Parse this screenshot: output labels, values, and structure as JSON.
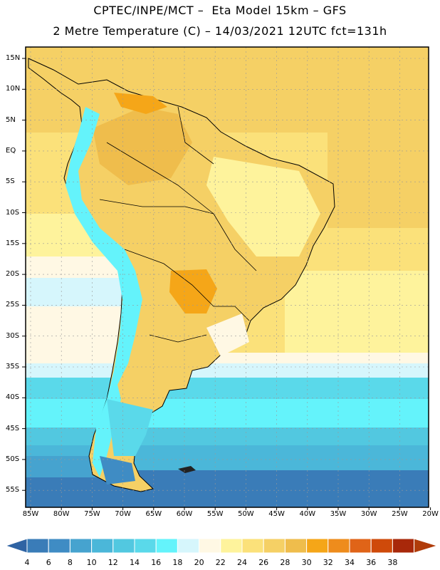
{
  "header": {
    "line1": "CPTEC/INPE/MCT –  Eta Model 15km – GFS",
    "line2": "2 Metre Temperature (C) – 14/03/2021 12UTC fct=131h"
  },
  "map": {
    "lat_labels": [
      "15N",
      "10N",
      "5N",
      "EQ",
      "5S",
      "10S",
      "15S",
      "20S",
      "25S",
      "30S",
      "35S",
      "40S",
      "45S",
      "50S",
      "55S"
    ],
    "lon_labels": [
      "85W",
      "80W",
      "75W",
      "70W",
      "65W",
      "60W",
      "55W",
      "50W",
      "45W",
      "40W",
      "35W",
      "30W",
      "25W",
      "20W"
    ],
    "grid": true
  },
  "colorbar": {
    "labels": [
      "4",
      "6",
      "8",
      "10",
      "12",
      "14",
      "16",
      "18",
      "20",
      "22",
      "24",
      "26",
      "28",
      "30",
      "32",
      "34",
      "36",
      "38"
    ],
    "colors": [
      "#3a7cb8",
      "#3f8cc4",
      "#46a3cf",
      "#4bb7d9",
      "#52c8e0",
      "#5ad9ea",
      "#64f3fb",
      "#d6f6fc",
      "#fff8e4",
      "#fef39c",
      "#fbe17a",
      "#f5d065",
      "#efbd4c",
      "#f5a618",
      "#ee8c1c",
      "#e06418",
      "#cf4a0a",
      "#a8280a"
    ],
    "low_arrow_color": "#2f63a3",
    "high_arrow_color": "#b03c0a"
  }
}
